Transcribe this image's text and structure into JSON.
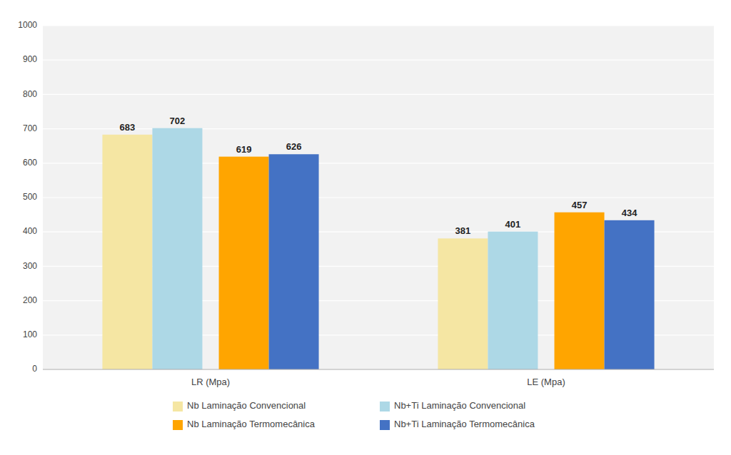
{
  "chart_data": {
    "type": "bar",
    "categories": [
      "LR (Mpa)",
      "LE (Mpa)"
    ],
    "series": [
      {
        "name": "Nb Laminação Convencional",
        "color": "#F5E6A3",
        "values": [
          683,
          381
        ]
      },
      {
        "name": "Nb+Ti Laminação Convencional",
        "color": "#ADD8E6",
        "values": [
          702,
          401
        ]
      },
      {
        "name": "Nb Laminação Termomecânica",
        "color": "#FFA500",
        "values": [
          619,
          457
        ]
      },
      {
        "name": "Nb+Ti Laminação Termomecânica",
        "color": "#4472C4",
        "values": [
          626,
          434
        ]
      }
    ],
    "ylim": [
      0,
      1000
    ],
    "yticks": [
      0,
      100,
      200,
      300,
      400,
      500,
      600,
      700,
      800,
      900,
      1000
    ],
    "grid": true,
    "data_labels": true,
    "legend": "bottom"
  }
}
